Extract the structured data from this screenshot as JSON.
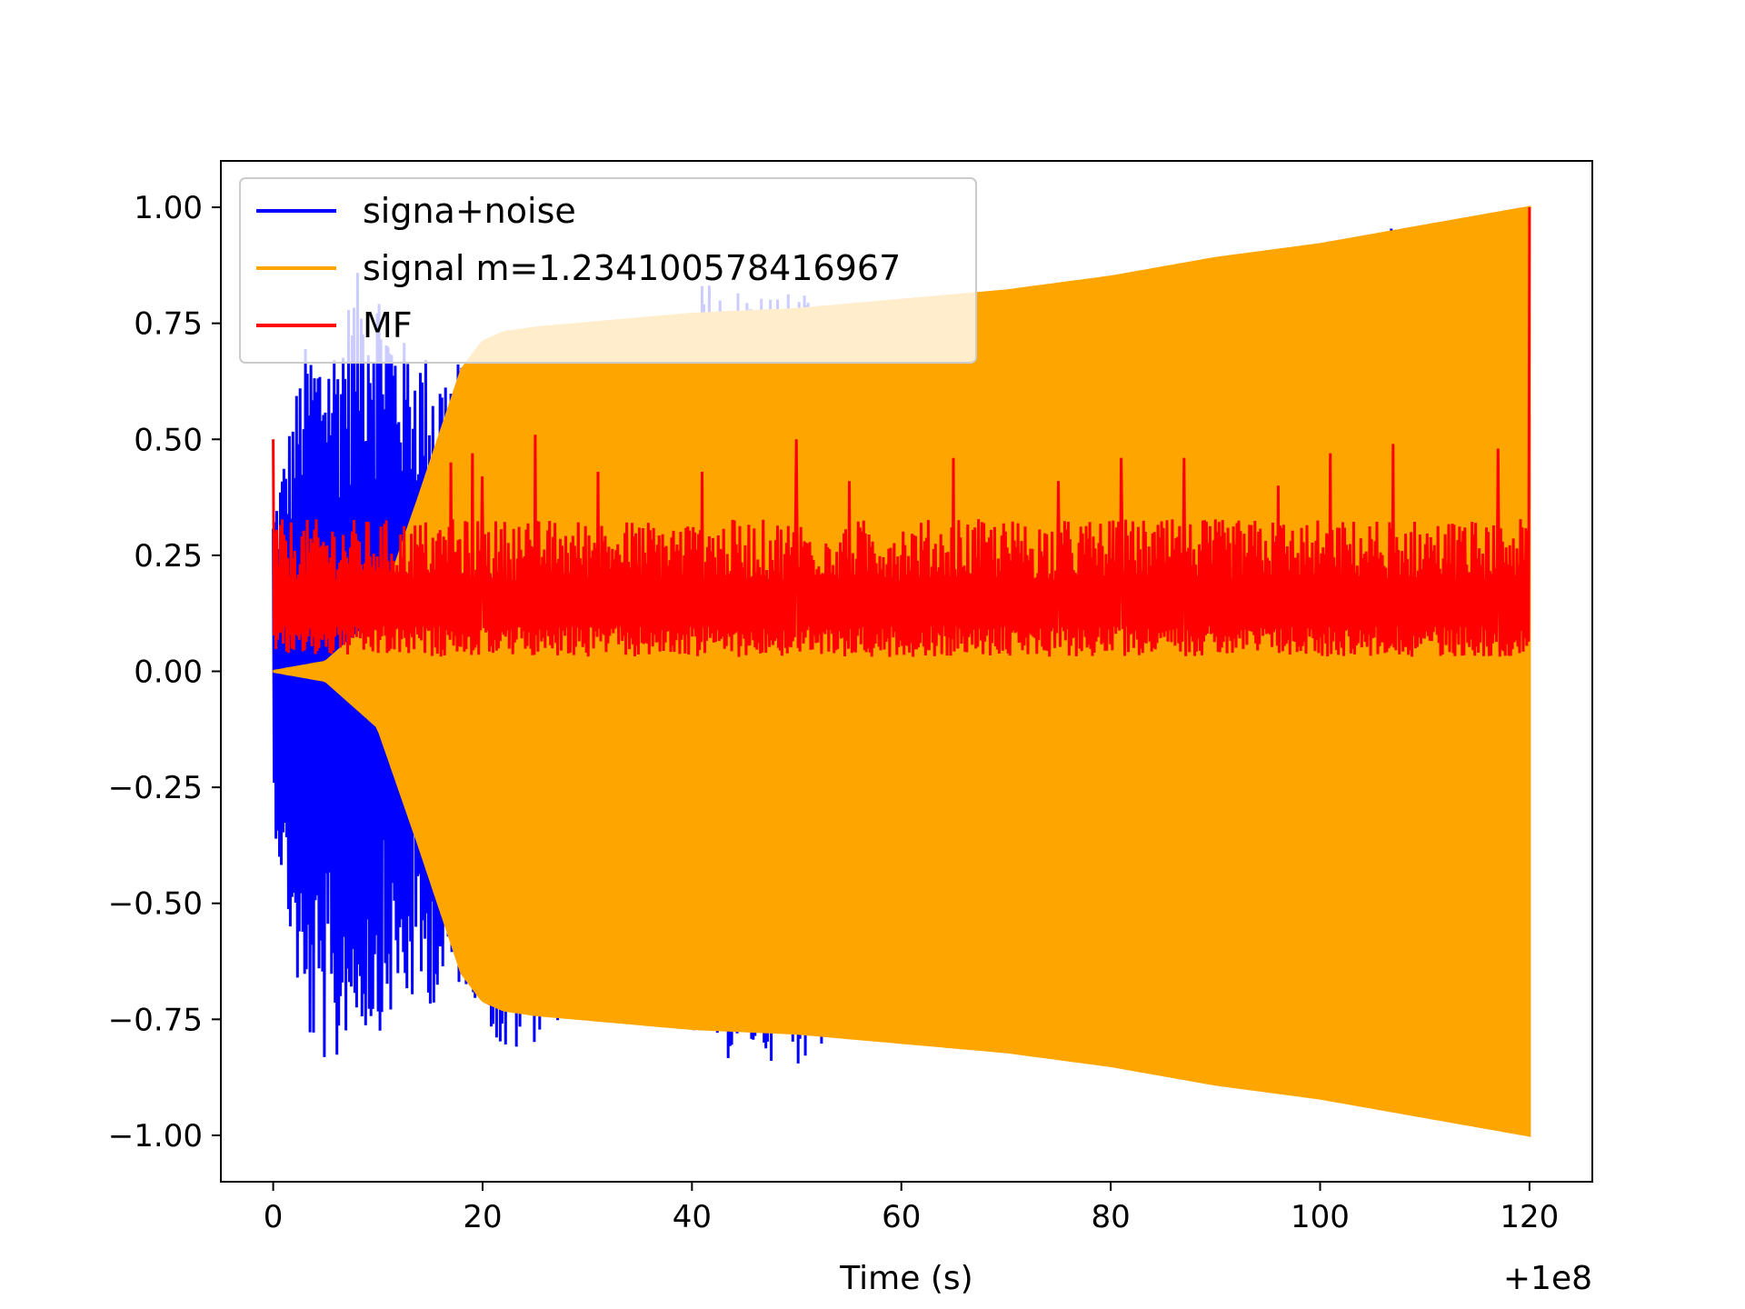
{
  "chart_data": {
    "type": "line",
    "title": "",
    "xlabel": "Time (s)",
    "ylabel": "",
    "x_offset_label": "+1e8",
    "xlim": [
      -5,
      126
    ],
    "ylim": [
      -1.1,
      1.1
    ],
    "xticks": [
      0,
      20,
      40,
      60,
      80,
      100,
      120
    ],
    "xtick_labels": [
      "0",
      "20",
      "40",
      "60",
      "80",
      "100",
      "120"
    ],
    "yticks": [
      1.0,
      0.75,
      0.5,
      0.25,
      0.0,
      -0.25,
      -0.5,
      -0.75,
      -1.0
    ],
    "ytick_labels": [
      "1.00",
      "0.75",
      "0.50",
      "0.25",
      "0.00",
      "−0.25",
      "−0.50",
      "−0.75",
      "−1.00"
    ],
    "grid": false,
    "legend_position": "top-left",
    "series": [
      {
        "name": "signa+noise",
        "color": "#0000ff",
        "kind": "noisy-oscillation",
        "x_range": [
          0,
          120
        ],
        "upper_envelope": {
          "x": [
            0,
            3,
            6,
            8,
            10,
            12,
            14,
            16,
            18,
            20,
            30,
            40,
            41,
            48,
            50,
            60,
            80,
            100,
            107,
            110,
            120
          ],
          "y": [
            0.35,
            0.7,
            0.72,
            0.86,
            0.86,
            0.72,
            0.7,
            0.66,
            0.68,
            0.55,
            0.62,
            0.55,
            0.85,
            0.83,
            0.83,
            0.6,
            0.6,
            0.6,
            1.0,
            0.6,
            0.6
          ]
        },
        "lower_envelope": {
          "x": [
            0,
            3,
            5,
            5.5,
            7,
            10,
            12,
            14,
            16,
            18,
            20,
            22,
            30,
            41,
            41.5,
            48,
            50,
            60,
            80,
            107,
            110,
            120
          ],
          "y": [
            -0.32,
            -0.8,
            -0.85,
            -0.93,
            -0.78,
            -0.78,
            -0.73,
            -0.72,
            -0.72,
            -0.68,
            -0.72,
            -0.86,
            -0.7,
            -0.8,
            -0.84,
            -0.84,
            -0.85,
            -0.7,
            -0.7,
            -0.94,
            -0.7,
            -0.7
          ]
        }
      },
      {
        "name": "signal m=1.234100578416967",
        "color": "#ffa500",
        "kind": "chirp",
        "x_range": [
          0,
          120
        ],
        "envelope": {
          "x": [
            0,
            5,
            10,
            14,
            18,
            20,
            22,
            25,
            30,
            40,
            50,
            60,
            70,
            80,
            90,
            100,
            110,
            120
          ],
          "y": [
            0.0,
            0.02,
            0.12,
            0.38,
            0.65,
            0.71,
            0.73,
            0.74,
            0.75,
            0.77,
            0.78,
            0.8,
            0.82,
            0.85,
            0.89,
            0.92,
            0.96,
            1.0
          ]
        }
      },
      {
        "name": "MF",
        "color": "#ff0000",
        "kind": "matched-filter-output",
        "x_range": [
          0,
          120
        ],
        "baseline": 0.13,
        "spread": 0.11,
        "spikes": [
          {
            "x": 0,
            "y": 0.5
          },
          {
            "x": 17,
            "y": 0.45
          },
          {
            "x": 19,
            "y": 0.47
          },
          {
            "x": 20,
            "y": 0.42
          },
          {
            "x": 25,
            "y": 0.51
          },
          {
            "x": 31,
            "y": 0.43
          },
          {
            "x": 41,
            "y": 0.43
          },
          {
            "x": 50,
            "y": 0.5
          },
          {
            "x": 55,
            "y": 0.41
          },
          {
            "x": 65,
            "y": 0.46
          },
          {
            "x": 75,
            "y": 0.41
          },
          {
            "x": 81,
            "y": 0.46
          },
          {
            "x": 87,
            "y": 0.46
          },
          {
            "x": 96,
            "y": 0.4
          },
          {
            "x": 101,
            "y": 0.47
          },
          {
            "x": 107,
            "y": 0.49
          },
          {
            "x": 117,
            "y": 0.48
          },
          {
            "x": 120,
            "y": 1.0
          }
        ]
      }
    ]
  }
}
